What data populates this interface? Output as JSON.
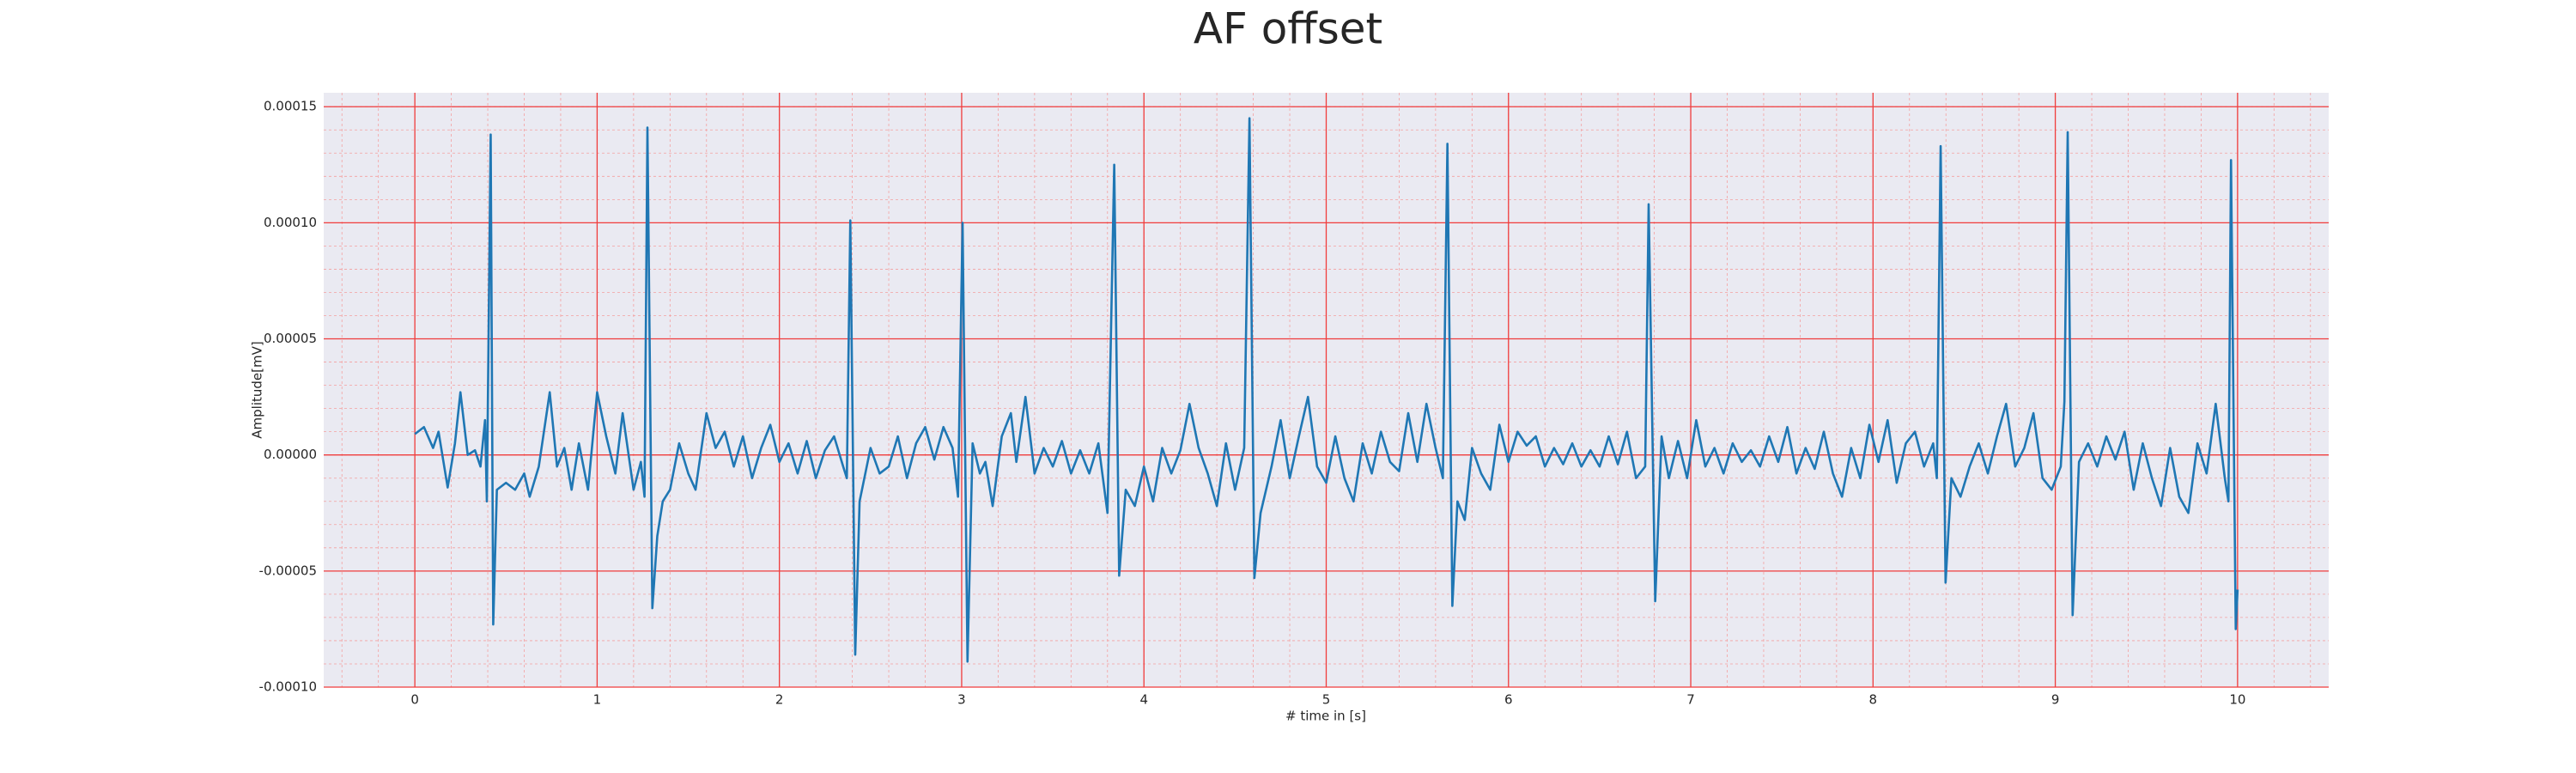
{
  "chart_data": {
    "type": "line",
    "title": "AF offset",
    "xlabel": "# time in [s]",
    "ylabel": "Amplitude[mV]",
    "color": "#1f77b4",
    "grid": true,
    "xlim": [
      -0.5,
      10.5
    ],
    "ylim": [
      -0.0001,
      0.000156
    ],
    "xticks": [
      0,
      1,
      2,
      3,
      4,
      5,
      6,
      7,
      8,
      9,
      10
    ],
    "yticks": [
      {
        "value": -0.0001,
        "label": "-0.00010"
      },
      {
        "value": -5e-05,
        "label": "-0.00005"
      },
      {
        "value": 0,
        "label": "0.00000"
      },
      {
        "value": 5e-05,
        "label": "0.00005"
      },
      {
        "value": 0.0001,
        "label": "0.00010"
      },
      {
        "value": 0.00015,
        "label": "0.00015"
      }
    ],
    "x": [
      0,
      0.05,
      0.1,
      0.13,
      0.18,
      0.22,
      0.25,
      0.29,
      0.33,
      0.36,
      0.385,
      0.395,
      0.416,
      0.43,
      0.45,
      0.5,
      0.55,
      0.6,
      0.63,
      0.68,
      0.74,
      0.78,
      0.82,
      0.86,
      0.9,
      0.95,
      1.0,
      1.05,
      1.1,
      1.14,
      1.2,
      1.24,
      1.26,
      1.276,
      1.303,
      1.33,
      1.36,
      1.4,
      1.45,
      1.5,
      1.54,
      1.6,
      1.65,
      1.7,
      1.75,
      1.8,
      1.85,
      1.9,
      1.95,
      2.0,
      2.05,
      2.1,
      2.15,
      2.2,
      2.25,
      2.3,
      2.35,
      2.37,
      2.389,
      2.416,
      2.44,
      2.5,
      2.55,
      2.6,
      2.65,
      2.7,
      2.75,
      2.8,
      2.85,
      2.9,
      2.95,
      2.98,
      3.005,
      3.032,
      3.06,
      3.1,
      3.13,
      3.17,
      3.22,
      3.27,
      3.3,
      3.35,
      3.4,
      3.45,
      3.5,
      3.55,
      3.6,
      3.65,
      3.7,
      3.75,
      3.8,
      3.837,
      3.864,
      3.9,
      3.95,
      4.0,
      4.05,
      4.1,
      4.15,
      4.2,
      4.25,
      4.3,
      4.35,
      4.4,
      4.45,
      4.5,
      4.55,
      4.579,
      4.606,
      4.64,
      4.7,
      4.75,
      4.8,
      4.85,
      4.9,
      4.95,
      5.0,
      5.05,
      5.1,
      5.15,
      5.2,
      5.25,
      5.3,
      5.35,
      5.4,
      5.45,
      5.5,
      5.55,
      5.6,
      5.64,
      5.665,
      5.692,
      5.72,
      5.76,
      5.8,
      5.85,
      5.9,
      5.95,
      6.0,
      6.05,
      6.1,
      6.15,
      6.2,
      6.25,
      6.3,
      6.35,
      6.4,
      6.45,
      6.5,
      6.55,
      6.6,
      6.65,
      6.7,
      6.75,
      6.769,
      6.805,
      6.84,
      6.88,
      6.93,
      6.98,
      7.03,
      7.08,
      7.13,
      7.18,
      7.23,
      7.28,
      7.33,
      7.38,
      7.43,
      7.48,
      7.53,
      7.58,
      7.63,
      7.68,
      7.73,
      7.78,
      7.83,
      7.88,
      7.93,
      7.98,
      8.03,
      8.08,
      8.13,
      8.18,
      8.23,
      8.28,
      8.33,
      8.35,
      8.371,
      8.398,
      8.43,
      8.48,
      8.53,
      8.58,
      8.63,
      8.68,
      8.73,
      8.78,
      8.83,
      8.88,
      8.93,
      8.98,
      9.03,
      9.05,
      9.068,
      9.095,
      9.13,
      9.18,
      9.23,
      9.28,
      9.33,
      9.38,
      9.43,
      9.48,
      9.53,
      9.58,
      9.63,
      9.68,
      9.73,
      9.78,
      9.83,
      9.88,
      9.93,
      9.95,
      9.964,
      9.99,
      10.0
    ],
    "values": [
      9e-06,
      1.2e-05,
      3e-06,
      1e-05,
      -1.4e-05,
      5e-06,
      2.7e-05,
      0,
      2e-06,
      -5e-06,
      1.5e-05,
      -2e-05,
      0.000138,
      -7.3e-05,
      -1.5e-05,
      -1.2e-05,
      -1.5e-05,
      -8e-06,
      -1.8e-05,
      -5e-06,
      2.7e-05,
      -5e-06,
      3e-06,
      -1.5e-05,
      5e-06,
      -1.5e-05,
      2.7e-05,
      8e-06,
      -8e-06,
      1.8e-05,
      -1.5e-05,
      -3e-06,
      -1.8e-05,
      0.000141,
      -6.6e-05,
      -3.5e-05,
      -2e-05,
      -1.5e-05,
      5e-06,
      -8e-06,
      -1.5e-05,
      1.8e-05,
      3e-06,
      1e-05,
      -5e-06,
      8e-06,
      -1e-05,
      3e-06,
      1.3e-05,
      -3e-06,
      5e-06,
      -8e-06,
      6e-06,
      -1e-05,
      2e-06,
      8e-06,
      -5e-06,
      -1e-05,
      0.000101,
      -8.6e-05,
      -2e-05,
      3e-06,
      -8e-06,
      -5e-06,
      8e-06,
      -1e-05,
      5e-06,
      1.2e-05,
      -2e-06,
      1.2e-05,
      3e-06,
      -1.8e-05,
      0.0001,
      -8.9e-05,
      5e-06,
      -8e-06,
      -3e-06,
      -2.2e-05,
      8e-06,
      1.8e-05,
      -3e-06,
      2.5e-05,
      -8e-06,
      3e-06,
      -5e-06,
      6e-06,
      -8e-06,
      2e-06,
      -8e-06,
      5e-06,
      -2.5e-05,
      0.000125,
      -5.2e-05,
      -1.5e-05,
      -2.2e-05,
      -5e-06,
      -2e-05,
      3e-06,
      -8e-06,
      2e-06,
      2.2e-05,
      3e-06,
      -8e-06,
      -2.2e-05,
      5e-06,
      -1.5e-05,
      3e-06,
      0.000145,
      -5.3e-05,
      -2.5e-05,
      -5e-06,
      1.5e-05,
      -1e-05,
      8e-06,
      2.5e-05,
      -5e-06,
      -1.2e-05,
      8e-06,
      -1e-05,
      -2e-05,
      5e-06,
      -8e-06,
      1e-05,
      -3e-06,
      -7e-06,
      1.8e-05,
      -3e-06,
      2.2e-05,
      3e-06,
      -1e-05,
      0.000134,
      -6.5e-05,
      -2e-05,
      -2.8e-05,
      3e-06,
      -8e-06,
      -1.5e-05,
      1.3e-05,
      -3e-06,
      1e-05,
      4e-06,
      8e-06,
      -5e-06,
      3e-06,
      -4e-06,
      5e-06,
      -5e-06,
      2e-06,
      -5e-06,
      8e-06,
      -4e-06,
      1e-05,
      -1e-05,
      -5e-06,
      0.000108,
      -6.3e-05,
      8e-06,
      -1e-05,
      6e-06,
      -1e-05,
      1.5e-05,
      -5e-06,
      3e-06,
      -8e-06,
      5e-06,
      -3e-06,
      2e-06,
      -5e-06,
      8e-06,
      -3e-06,
      1.2e-05,
      -8e-06,
      3e-06,
      -6e-06,
      1e-05,
      -8e-06,
      -1.8e-05,
      3e-06,
      -1e-05,
      1.3e-05,
      -3e-06,
      1.5e-05,
      -1.2e-05,
      5e-06,
      1e-05,
      -5e-06,
      5e-06,
      -1e-05,
      0.000133,
      -5.5e-05,
      -1e-05,
      -1.8e-05,
      -5e-06,
      5e-06,
      -8e-06,
      8e-06,
      2.2e-05,
      -5e-06,
      3e-06,
      1.8e-05,
      -1e-05,
      -1.5e-05,
      -5e-06,
      2.3e-05,
      0.000139,
      -6.9e-05,
      -3e-06,
      5e-06,
      -5e-06,
      8e-06,
      -2e-06,
      1e-05,
      -1.5e-05,
      5e-06,
      -1e-05,
      -2.2e-05,
      3e-06,
      -1.8e-05,
      -2.5e-05,
      5e-06,
      -8e-06,
      2.2e-05,
      -1e-05,
      -2e-05,
      0.000127,
      -7.5e-05,
      -5.8e-05
    ]
  }
}
